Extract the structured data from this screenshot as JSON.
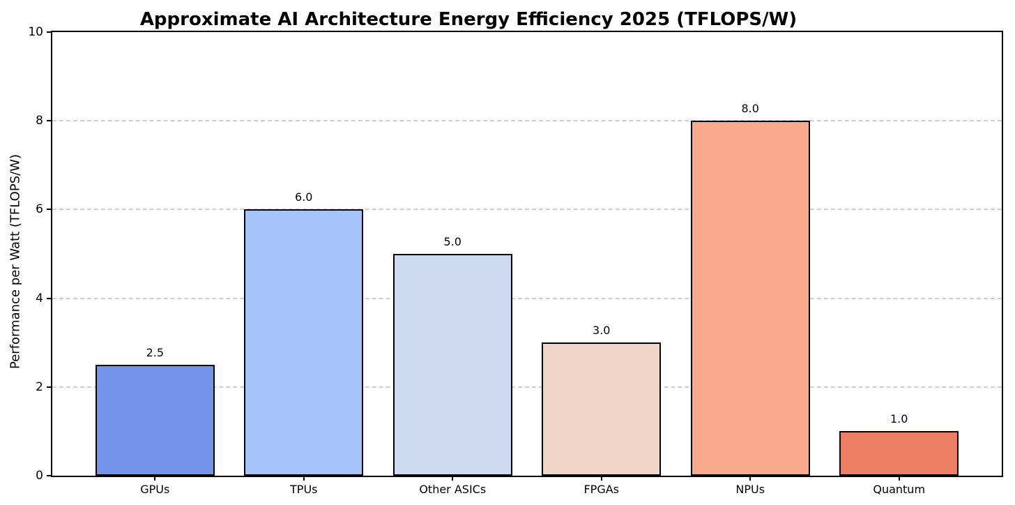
{
  "chart_data": {
    "type": "bar",
    "title": "Approximate AI Architecture Energy Efficiency 2025 (TFLOPS/W)",
    "ylabel": "Performance per Watt (TFLOPS/W)",
    "xlabel": "",
    "categories": [
      "GPUs",
      "TPUs",
      "Other ASICs",
      "FPGAs",
      "NPUs",
      "Quantum"
    ],
    "values": [
      2.5,
      6.0,
      5.0,
      3.0,
      8.0,
      1.0
    ],
    "bar_value_labels": [
      "2.5",
      "6.0",
      "5.0",
      "3.0",
      "8.0",
      "1.0"
    ],
    "bar_colors": [
      "#7493eb",
      "#a6c3fa",
      "#cdd9ee",
      "#efd6c7",
      "#f8a98c",
      "#ec7f63"
    ],
    "bar_edge_color": "#000000",
    "ylim": [
      0,
      10
    ],
    "yticks": [
      "0",
      "2",
      "4",
      "6",
      "8",
      "10"
    ],
    "grid": "horizontal dashed lines at major y ticks",
    "gridline_color": "#cfcfcf",
    "axis_color": "#000000",
    "background_color": "#ffffff",
    "legend_position": "none"
  }
}
